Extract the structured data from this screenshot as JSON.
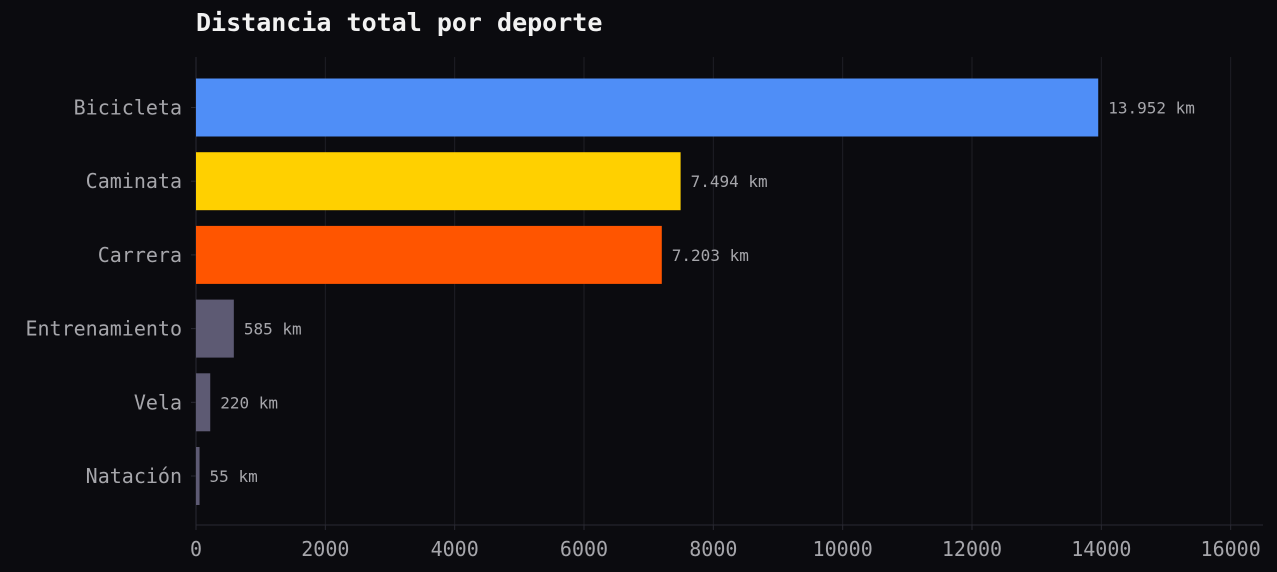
{
  "chart_data": {
    "type": "bar",
    "orientation": "horizontal",
    "title": "Distancia total por deporte",
    "xlabel": "",
    "ylabel": "",
    "xlim": [
      0,
      16500
    ],
    "x_ticks": [
      0,
      2000,
      4000,
      6000,
      8000,
      10000,
      12000,
      14000,
      16000
    ],
    "grid": "vertical",
    "categories": [
      "Bicicleta",
      "Caminata",
      "Carrera",
      "Entrenamiento",
      "Vela",
      "Natación"
    ],
    "values": [
      13952,
      7494,
      7203,
      585,
      220,
      55
    ],
    "value_labels": [
      "13.952 km",
      "7.494 km",
      "7.203 km",
      "585 km",
      "220 km",
      "55 km"
    ],
    "colors": [
      "#4f8ef7",
      "#ffd000",
      "#ff5500",
      "#5d5a73",
      "#5d5a73",
      "#5d5a73"
    ],
    "theme": {
      "background": "#0b0b0f",
      "grid_color": "#1f1f26",
      "axis_color": "#2a2a33",
      "text_color": "#a6a6ab",
      "title_color": "#f2f2f2"
    }
  }
}
